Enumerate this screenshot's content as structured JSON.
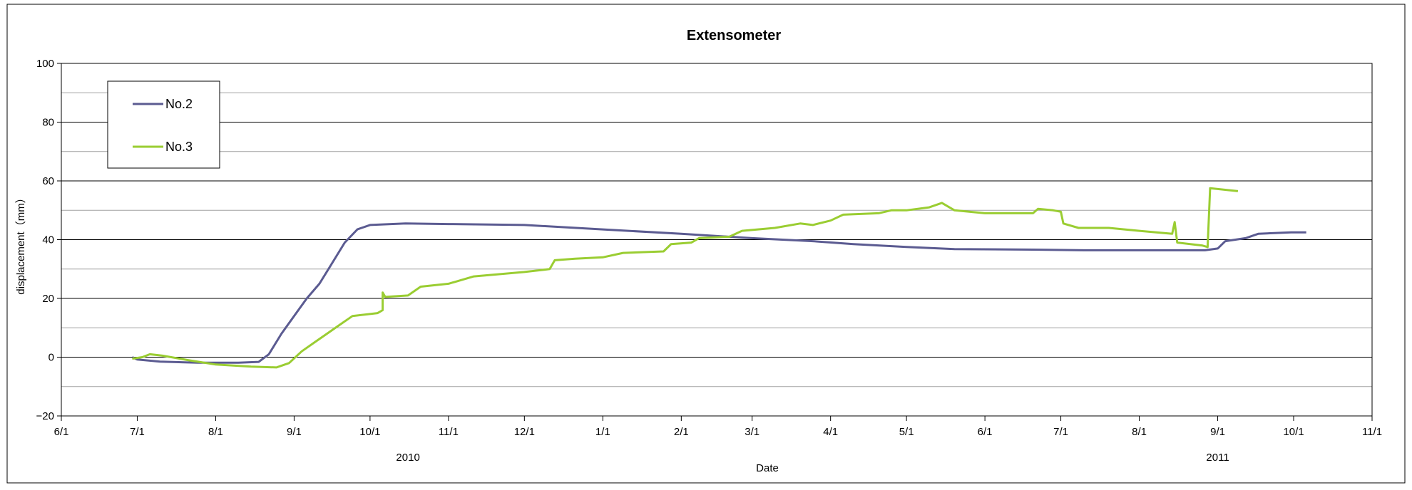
{
  "chart_data": {
    "type": "line",
    "title": "Extensometer",
    "xlabel": "Date",
    "ylabel": "displacement（mm）",
    "ylim": [
      -20,
      100
    ],
    "yticks": [
      -20,
      0,
      20,
      40,
      60,
      80,
      100
    ],
    "xlim": [
      "2010-06-01",
      "2011-11-01"
    ],
    "xticks": [
      {
        "date": "2010-06-01",
        "label": "6/1"
      },
      {
        "date": "2010-07-01",
        "label": "7/1"
      },
      {
        "date": "2010-08-01",
        "label": "8/1"
      },
      {
        "date": "2010-09-01",
        "label": "9/1"
      },
      {
        "date": "2010-10-01",
        "label": "10/1"
      },
      {
        "date": "2010-11-01",
        "label": "11/1"
      },
      {
        "date": "2010-12-01",
        "label": "12/1"
      },
      {
        "date": "2011-01-01",
        "label": "1/1"
      },
      {
        "date": "2011-02-01",
        "label": "2/1"
      },
      {
        "date": "2011-03-01",
        "label": "3/1"
      },
      {
        "date": "2011-04-01",
        "label": "4/1"
      },
      {
        "date": "2011-05-01",
        "label": "5/1"
      },
      {
        "date": "2011-06-01",
        "label": "6/1"
      },
      {
        "date": "2011-07-01",
        "label": "7/1"
      },
      {
        "date": "2011-08-01",
        "label": "8/1"
      },
      {
        "date": "2011-09-01",
        "label": "9/1"
      },
      {
        "date": "2011-10-01",
        "label": "10/1"
      },
      {
        "date": "2011-11-01",
        "label": "11/1"
      }
    ],
    "year_labels": [
      {
        "date": "2010-10-16",
        "label": "2010"
      },
      {
        "date": "2011-09-01",
        "label": "2011"
      }
    ],
    "grid": true,
    "legend_position": "top-left",
    "series": [
      {
        "name": "No.2",
        "color": "#5b5b91",
        "points": [
          [
            "2010-06-29",
            0
          ],
          [
            "2010-07-01",
            -0.8
          ],
          [
            "2010-07-10",
            -1.5
          ],
          [
            "2010-07-25",
            -1.9
          ],
          [
            "2010-08-10",
            -1.9
          ],
          [
            "2010-08-18",
            -1.6
          ],
          [
            "2010-08-22",
            1
          ],
          [
            "2010-08-27",
            8
          ],
          [
            "2010-09-01",
            14
          ],
          [
            "2010-09-06",
            20
          ],
          [
            "2010-09-11",
            25
          ],
          [
            "2010-09-16",
            32
          ],
          [
            "2010-09-21",
            39
          ],
          [
            "2010-09-26",
            43.5
          ],
          [
            "2010-10-01",
            45
          ],
          [
            "2010-10-15",
            45.5
          ],
          [
            "2010-11-01",
            45.3
          ],
          [
            "2010-12-01",
            45
          ],
          [
            "2011-01-01",
            43.5
          ],
          [
            "2011-02-01",
            42
          ],
          [
            "2011-03-01",
            40.5
          ],
          [
            "2011-03-25",
            39.5
          ],
          [
            "2011-04-10",
            38.5
          ],
          [
            "2011-05-01",
            37.5
          ],
          [
            "2011-05-20",
            36.8
          ],
          [
            "2011-06-20",
            36.6
          ],
          [
            "2011-07-10",
            36.4
          ],
          [
            "2011-08-27",
            36.4
          ],
          [
            "2011-09-01",
            37
          ],
          [
            "2011-09-04",
            39.5
          ],
          [
            "2011-09-12",
            40.5
          ],
          [
            "2011-09-17",
            42
          ],
          [
            "2011-09-30",
            42.5
          ],
          [
            "2011-10-06",
            42.5
          ]
        ]
      },
      {
        "name": "No.3",
        "color": "#9acd32",
        "points": [
          [
            "2010-06-29",
            -0.5
          ],
          [
            "2010-07-03",
            0
          ],
          [
            "2010-07-06",
            1
          ],
          [
            "2010-07-11",
            0.5
          ],
          [
            "2010-07-21",
            -1
          ],
          [
            "2010-08-01",
            -2.5
          ],
          [
            "2010-08-15",
            -3.2
          ],
          [
            "2010-08-25",
            -3.5
          ],
          [
            "2010-08-30",
            -2
          ],
          [
            "2010-09-04",
            2
          ],
          [
            "2010-09-09",
            5
          ],
          [
            "2010-09-14",
            8
          ],
          [
            "2010-09-19",
            11
          ],
          [
            "2010-09-24",
            14
          ],
          [
            "2010-10-04",
            15
          ],
          [
            "2010-10-06",
            16
          ],
          [
            "2010-10-06",
            22
          ],
          [
            "2010-10-07",
            20.5
          ],
          [
            "2010-10-16",
            21
          ],
          [
            "2010-10-21",
            24
          ],
          [
            "2010-11-01",
            25
          ],
          [
            "2010-11-11",
            27.5
          ],
          [
            "2010-12-01",
            29
          ],
          [
            "2010-12-11",
            30
          ],
          [
            "2010-12-13",
            33
          ],
          [
            "2010-12-21",
            33.5
          ],
          [
            "2011-01-01",
            34
          ],
          [
            "2011-01-09",
            35.5
          ],
          [
            "2011-01-25",
            36
          ],
          [
            "2011-01-28",
            38.5
          ],
          [
            "2011-02-05",
            39
          ],
          [
            "2011-02-08",
            40.5
          ],
          [
            "2011-02-20",
            41
          ],
          [
            "2011-02-25",
            43
          ],
          [
            "2011-03-10",
            44
          ],
          [
            "2011-03-20",
            45.5
          ],
          [
            "2011-03-25",
            45
          ],
          [
            "2011-04-01",
            46.5
          ],
          [
            "2011-04-06",
            48.5
          ],
          [
            "2011-04-20",
            49
          ],
          [
            "2011-04-25",
            50
          ],
          [
            "2011-05-01",
            50
          ],
          [
            "2011-05-10",
            51
          ],
          [
            "2011-05-15",
            52.5
          ],
          [
            "2011-05-20",
            50
          ],
          [
            "2011-06-01",
            49
          ],
          [
            "2011-06-20",
            49
          ],
          [
            "2011-06-22",
            50.5
          ],
          [
            "2011-06-28",
            50
          ],
          [
            "2011-07-01",
            49.5
          ],
          [
            "2011-07-02",
            45.5
          ],
          [
            "2011-07-08",
            44
          ],
          [
            "2011-07-20",
            44
          ],
          [
            "2011-08-01",
            43
          ],
          [
            "2011-08-14",
            42
          ],
          [
            "2011-08-15",
            46
          ],
          [
            "2011-08-16",
            39
          ],
          [
            "2011-08-26",
            38
          ],
          [
            "2011-08-28",
            37.5
          ],
          [
            "2011-08-29",
            57.5
          ],
          [
            "2011-09-09",
            56.5
          ]
        ]
      }
    ]
  }
}
